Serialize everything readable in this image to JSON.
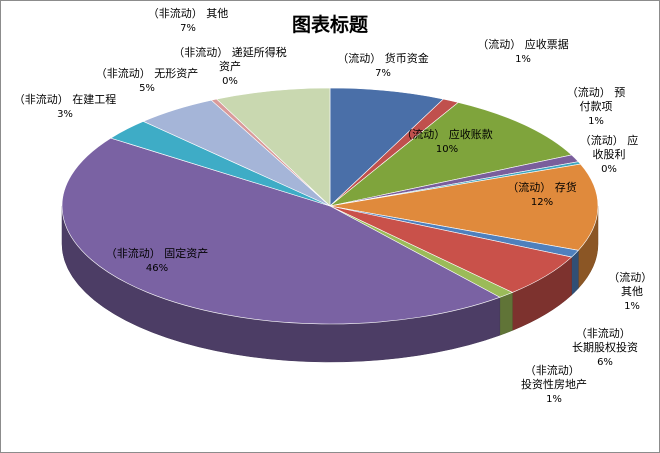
{
  "chart_data": {
    "type": "pie",
    "title": "图表标题",
    "slices": [
      {
        "label": "（流动） 货币资金",
        "value": 7,
        "value_label": "7%",
        "color": "#4a6fa8"
      },
      {
        "label": "（流动） 应收票据",
        "value": 1,
        "value_label": "1%",
        "color": "#c0504d"
      },
      {
        "label": "（流动） 应收账款",
        "value": 10,
        "value_label": "10%",
        "color": "#7fa43c"
      },
      {
        "label": "（流动） 预付款项",
        "value": 1,
        "value_label": "1%",
        "color": "#7a5e9c"
      },
      {
        "label": "（流动） 应收股利",
        "value": 0,
        "value_label": "0%",
        "color": "#3fa6c0"
      },
      {
        "label": "（流动） 存货",
        "value": 12,
        "value_label": "12%",
        "color": "#e08a3c"
      },
      {
        "label": "（流动） 其他",
        "value": 1,
        "value_label": "1%",
        "color": "#4f80bd"
      },
      {
        "label": "（非流动） 长期股权投资",
        "value": 6,
        "value_label": "6%",
        "color": "#c9514a"
      },
      {
        "label": "（非流动） 投资性房地产",
        "value": 1,
        "value_label": "1%",
        "color": "#9bbb59"
      },
      {
        "label": "（非流动） 固定资产",
        "value": 46,
        "value_label": "46%",
        "color": "#7a62a3"
      },
      {
        "label": "（非流动） 在建工程",
        "value": 3,
        "value_label": "3%",
        "color": "#3eacc6"
      },
      {
        "label": "（非流动） 无形资产",
        "value": 5,
        "value_label": "5%",
        "color": "#a5b5d8"
      },
      {
        "label": "（非流动） 递延所得税资产",
        "value": 0,
        "value_label": "0%",
        "color": "#d99a9a"
      },
      {
        "label": "（非流动） 其他",
        "value": 7,
        "value_label": "7%",
        "color": "#c9d8b0"
      }
    ],
    "legend": "none"
  }
}
